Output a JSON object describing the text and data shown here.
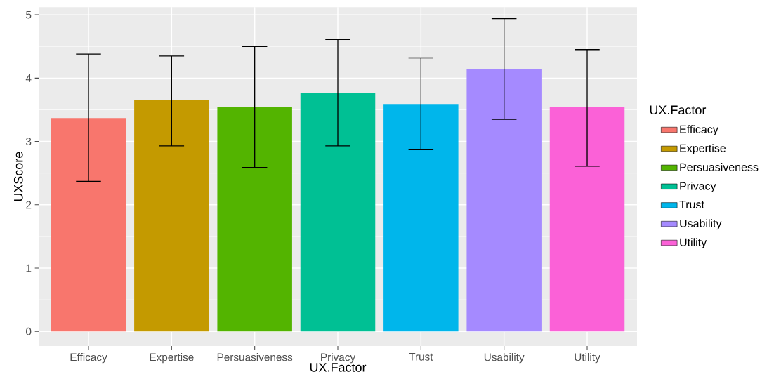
{
  "chart_data": {
    "type": "bar",
    "xlabel": "UX.Factor",
    "ylabel": "UXScore",
    "legend_title": "UX.Factor",
    "categories": [
      "Efficacy",
      "Expertise",
      "Persuasiveness",
      "Privacy",
      "Trust",
      "Usability",
      "Utility"
    ],
    "series": [
      {
        "name": "Efficacy",
        "color": "#f8766d",
        "values": [
          3.37,
          null,
          null,
          null,
          null,
          null,
          null
        ],
        "errors": [
          [
            2.37,
            4.38
          ],
          null,
          null,
          null,
          null,
          null,
          null
        ]
      },
      {
        "name": "Expertise",
        "color": "#c49a00",
        "values": [
          null,
          3.65,
          null,
          null,
          null,
          null,
          null
        ],
        "errors": [
          null,
          [
            2.93,
            4.35
          ],
          null,
          null,
          null,
          null,
          null
        ]
      },
      {
        "name": "Persuasiveness",
        "color": "#53b400",
        "values": [
          null,
          null,
          3.55,
          null,
          null,
          null,
          null
        ],
        "errors": [
          null,
          null,
          [
            2.59,
            4.5
          ],
          null,
          null,
          null,
          null
        ]
      },
      {
        "name": "Privacy",
        "color": "#00c094",
        "values": [
          null,
          null,
          null,
          3.77,
          null,
          null,
          null
        ],
        "errors": [
          null,
          null,
          null,
          [
            2.93,
            4.61
          ],
          null,
          null,
          null
        ]
      },
      {
        "name": "Trust",
        "color": "#00b6eb",
        "values": [
          null,
          null,
          null,
          null,
          3.59,
          null,
          null
        ],
        "errors": [
          null,
          null,
          null,
          null,
          [
            2.87,
            4.32
          ],
          null,
          null
        ]
      },
      {
        "name": "Usability",
        "color": "#a58aff",
        "values": [
          null,
          null,
          null,
          null,
          null,
          4.14,
          null
        ],
        "errors": [
          null,
          null,
          null,
          null,
          null,
          [
            3.35,
            4.94
          ],
          null
        ]
      },
      {
        "name": "Utility",
        "color": "#fb61d7",
        "values": [
          null,
          null,
          null,
          null,
          null,
          null,
          3.54
        ],
        "errors": [
          null,
          null,
          null,
          null,
          null,
          null,
          [
            2.61,
            4.45
          ]
        ]
      }
    ],
    "ylim": [
      -0.23,
      5.12
    ],
    "yticks": [
      0,
      1,
      2,
      3,
      4,
      5
    ],
    "grid": true,
    "legend": "right"
  }
}
